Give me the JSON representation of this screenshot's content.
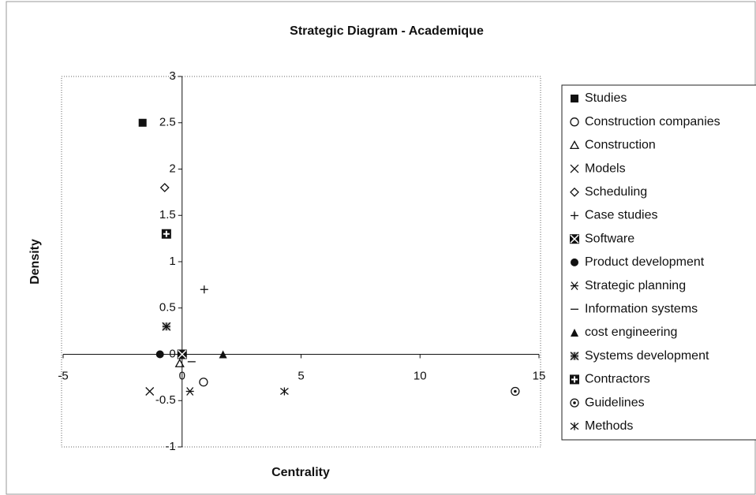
{
  "chart_data": {
    "type": "scatter",
    "title": "Strategic Diagram - Academique",
    "xlabel": "Centrality",
    "ylabel": "Density",
    "xlim": [
      -5,
      15
    ],
    "xticks": [
      -5,
      0,
      5,
      10,
      15
    ],
    "ylim": [
      -1,
      3
    ],
    "yticks": [
      -1,
      -0.5,
      0,
      0.5,
      1,
      1.5,
      2,
      2.5,
      3
    ],
    "legend": "right",
    "grid": false,
    "series": [
      {
        "name": "Studies",
        "color": "#111111",
        "marker": "square",
        "x": [
          -1.66
        ],
        "values": [
          2.5
        ]
      },
      {
        "name": "Construction companies",
        "color": "#111111",
        "marker": "circle",
        "x": [
          0.9
        ],
        "values": [
          -0.3
        ]
      },
      {
        "name": "Construction",
        "color": "#111111",
        "marker": "triangle",
        "x": [
          -0.1
        ],
        "values": [
          -0.1
        ]
      },
      {
        "name": "Models",
        "color": "#111111",
        "marker": "x",
        "x": [
          -1.36
        ],
        "values": [
          -0.4
        ]
      },
      {
        "name": "Scheduling",
        "color": "#111111",
        "marker": "diamond",
        "x": [
          -0.73
        ],
        "values": [
          1.8
        ]
      },
      {
        "name": "Case studies",
        "color": "#111111",
        "marker": "plus",
        "x": [
          0.93
        ],
        "values": [
          0.7
        ]
      },
      {
        "name": "Software",
        "color": "#111111",
        "marker": "square-x",
        "x": [
          0
        ],
        "values": [
          0
        ]
      },
      {
        "name": "Product development",
        "color": "#111111",
        "marker": "dot",
        "x": [
          -0.93
        ],
        "values": [
          0
        ]
      },
      {
        "name": "Strategic planning",
        "color": "#111111",
        "marker": "asterisk",
        "x": [
          0.33
        ],
        "values": [
          -0.4
        ]
      },
      {
        "name": "Information systems",
        "color": "#111111",
        "marker": "dash",
        "x": [
          0.4
        ],
        "values": [
          -0.08
        ]
      },
      {
        "name": "cost engineering",
        "color": "#111111",
        "marker": "filled-triangle",
        "x": [
          1.72
        ],
        "values": [
          0
        ]
      },
      {
        "name": "Systems development",
        "color": "#111111",
        "marker": "hatched",
        "x": [
          -0.66
        ],
        "values": [
          0.3
        ]
      },
      {
        "name": "Contractors",
        "color": "#111111",
        "marker": "square-plus",
        "x": [
          -0.66
        ],
        "values": [
          1.3
        ]
      },
      {
        "name": "Guidelines",
        "color": "#111111",
        "marker": "circle-dot",
        "x": [
          14
        ],
        "values": [
          -0.4
        ]
      },
      {
        "name": "Methods",
        "color": "#111111",
        "marker": "star",
        "x": [
          4.3
        ],
        "values": [
          -0.4
        ]
      }
    ]
  }
}
